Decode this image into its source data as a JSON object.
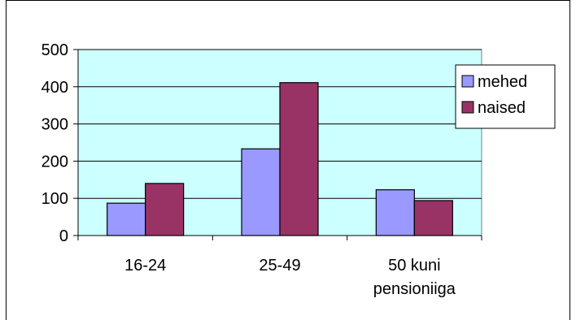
{
  "chart_data": {
    "type": "bar",
    "title": "",
    "xlabel": "",
    "ylabel": "",
    "categories": [
      "16-24",
      "25-49",
      "50 kuni pensioniiga"
    ],
    "category_lines": [
      [
        "16-24"
      ],
      [
        "25-49"
      ],
      [
        "50 kuni",
        "pensioniiga"
      ]
    ],
    "series": [
      {
        "name": "mehed",
        "values": [
          87,
          233,
          123
        ],
        "color": "#9999ff"
      },
      {
        "name": "naised",
        "values": [
          140,
          411,
          94
        ],
        "color": "#993366"
      }
    ],
    "ylim": [
      0,
      500
    ],
    "yticks": [
      0,
      100,
      200,
      300,
      400,
      500
    ],
    "grid": true,
    "legend": "right",
    "plot_background": "#ccffff"
  }
}
